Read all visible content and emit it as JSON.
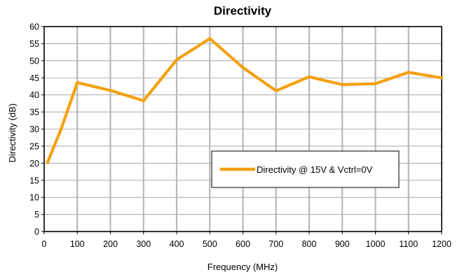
{
  "chart_data": {
    "type": "line",
    "title": "Directivity",
    "xlabel": "Frequency (MHz)",
    "ylabel": "Directivity (dB)",
    "xlim": [
      0,
      1200
    ],
    "ylim": [
      0,
      60
    ],
    "xticks": [
      0,
      100,
      200,
      300,
      400,
      500,
      600,
      700,
      800,
      900,
      1000,
      1100,
      1200
    ],
    "yticks": [
      0,
      5,
      10,
      15,
      20,
      25,
      30,
      35,
      40,
      45,
      50,
      55,
      60
    ],
    "grid": {
      "vertical": true,
      "horizontal": true
    },
    "legend_position": "center-right",
    "series": [
      {
        "name": "Directivity @ 15V & Vctrl=0V",
        "color": "#F5A00F",
        "x": [
          10,
          50,
          100,
          200,
          300,
          400,
          500,
          600,
          700,
          800,
          900,
          1000,
          1100,
          1200
        ],
        "y": [
          20.2,
          29.7,
          43.6,
          41.3,
          38.3,
          50.3,
          56.5,
          48.0,
          41.2,
          45.3,
          43.0,
          43.3,
          46.6,
          45.0
        ]
      }
    ]
  },
  "colors": {
    "frame": "#000000",
    "vgrid": "#B8B8B8",
    "hgrid": "#9A9A9A"
  }
}
